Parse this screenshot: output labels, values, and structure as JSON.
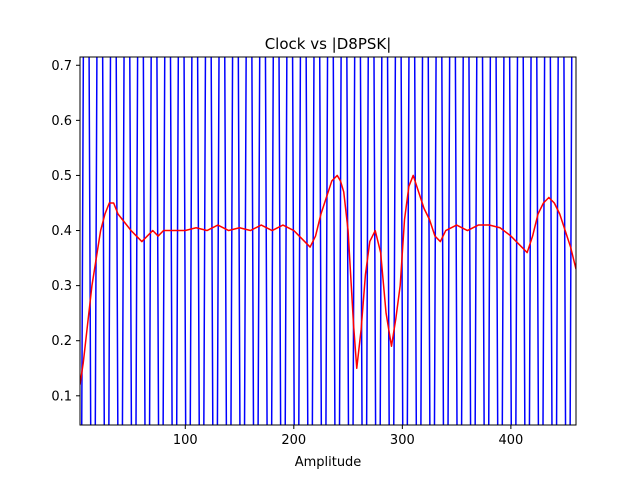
{
  "chart_data": {
    "type": "line",
    "title": "Clock vs |D8PSK|",
    "xlabel": "Amplitude",
    "ylabel": "",
    "xlim": [
      3,
      460
    ],
    "ylim": [
      0.047,
      0.715
    ],
    "xticks": [
      100,
      200,
      300,
      400
    ],
    "yticks": [
      0.1,
      0.2,
      0.3,
      0.4,
      0.5,
      0.6,
      0.7
    ],
    "xtick_labels": [
      "100",
      "200",
      "300",
      "400"
    ],
    "ytick_labels": [
      "0.1",
      "0.2",
      "0.3",
      "0.4",
      "0.5",
      "0.6",
      "0.7"
    ],
    "grid": false,
    "legend": "none",
    "series": [
      {
        "color": "#0000ff",
        "style": "clock",
        "period": 12.5,
        "offset": 17,
        "low": 0.0,
        "high": 1.0
      },
      {
        "color": "#ff0000",
        "x": [
          3,
          6,
          10,
          14,
          18,
          22,
          26,
          30,
          34,
          38,
          42,
          46,
          50,
          55,
          60,
          65,
          70,
          75,
          80,
          90,
          100,
          110,
          120,
          130,
          140,
          150,
          160,
          170,
          180,
          190,
          200,
          205,
          210,
          215,
          220,
          225,
          230,
          235,
          240,
          243,
          246,
          250,
          255,
          258,
          262,
          266,
          270,
          275,
          280,
          285,
          290,
          294,
          298,
          302,
          306,
          310,
          315,
          320,
          325,
          330,
          335,
          340,
          350,
          360,
          370,
          380,
          390,
          400,
          405,
          410,
          415,
          420,
          425,
          430,
          435,
          440,
          445,
          450,
          455,
          460
        ],
        "y": [
          0.12,
          0.16,
          0.23,
          0.3,
          0.35,
          0.4,
          0.43,
          0.45,
          0.45,
          0.43,
          0.42,
          0.41,
          0.4,
          0.39,
          0.38,
          0.39,
          0.4,
          0.39,
          0.4,
          0.4,
          0.4,
          0.405,
          0.4,
          0.41,
          0.4,
          0.405,
          0.4,
          0.41,
          0.4,
          0.41,
          0.4,
          0.39,
          0.38,
          0.37,
          0.39,
          0.43,
          0.46,
          0.49,
          0.5,
          0.49,
          0.47,
          0.4,
          0.23,
          0.15,
          0.22,
          0.32,
          0.38,
          0.4,
          0.36,
          0.25,
          0.19,
          0.24,
          0.3,
          0.42,
          0.48,
          0.5,
          0.47,
          0.44,
          0.42,
          0.39,
          0.38,
          0.4,
          0.41,
          0.4,
          0.41,
          0.41,
          0.405,
          0.39,
          0.38,
          0.37,
          0.36,
          0.39,
          0.43,
          0.45,
          0.46,
          0.45,
          0.43,
          0.4,
          0.37,
          0.33
        ]
      }
    ]
  }
}
